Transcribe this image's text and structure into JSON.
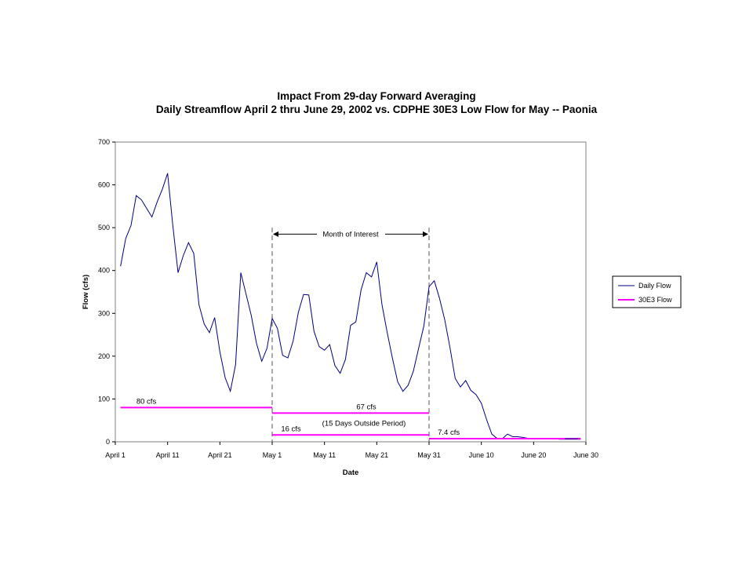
{
  "chart_data": {
    "type": "line",
    "title": "Impact From 29-day Forward Averaging",
    "subtitle": "Daily Streamflow April 2 thru June 29, 2002 vs. CDPHE 30E3 Low Flow for May -- Paonia",
    "xlabel": "Date",
    "ylabel": "Flow (cfs)",
    "ylim": [
      0,
      700
    ],
    "yticks": [
      0,
      100,
      200,
      300,
      400,
      500,
      600,
      700
    ],
    "xlim": [
      0,
      90
    ],
    "xticks": [
      {
        "day": 0,
        "label": "April 1"
      },
      {
        "day": 10,
        "label": "April 11"
      },
      {
        "day": 20,
        "label": "April 21"
      },
      {
        "day": 30,
        "label": "May 1"
      },
      {
        "day": 40,
        "label": "May 11"
      },
      {
        "day": 50,
        "label": "May 21"
      },
      {
        "day": 60,
        "label": "May 31"
      },
      {
        "day": 70,
        "label": "June 10"
      },
      {
        "day": 80,
        "label": "June 20"
      },
      {
        "day": 90,
        "label": "June 30"
      }
    ],
    "grid": false,
    "legend_position": "right",
    "series": [
      {
        "name": "Daily Flow",
        "color": "#000080",
        "x_start_day": 1,
        "values": [
          410,
          475,
          505,
          575,
          565,
          545,
          525,
          560,
          590,
          627,
          505,
          395,
          435,
          465,
          440,
          320,
          275,
          255,
          290,
          210,
          150,
          118,
          180,
          395,
          345,
          295,
          230,
          188,
          218,
          288,
          265,
          202,
          196,
          235,
          302,
          344,
          343,
          258,
          222,
          214,
          227,
          178,
          160,
          192,
          272,
          280,
          355,
          395,
          385,
          420,
          320,
          255,
          195,
          140,
          118,
          132,
          165,
          218,
          270,
          362,
          376,
          335,
          285,
          220,
          148,
          128,
          143,
          120,
          110,
          90,
          52,
          18,
          8,
          7,
          18,
          12,
          12,
          10,
          8,
          8,
          7,
          7,
          7,
          7,
          6,
          6,
          6,
          6,
          6
        ]
      },
      {
        "name": "30E3 Flow",
        "color": "#ff00ff",
        "segments": [
          {
            "from_day": 1,
            "to_day": 30,
            "value": 80,
            "label": "80 cfs"
          },
          {
            "from_day": 30,
            "to_day": 60,
            "value": 67,
            "label": "67 cfs"
          },
          {
            "from_day": 30,
            "to_day": 60,
            "value": 16,
            "label": "16 cfs"
          },
          {
            "from_day": 60,
            "to_day": 89,
            "value": 7.4,
            "label": "7.4 cfs"
          }
        ]
      }
    ],
    "annotations": {
      "month_of_interest": {
        "label": "Month of Interest",
        "from_day": 30,
        "to_day": 60
      },
      "outside_period": "(15 Days Outside Period)"
    }
  }
}
